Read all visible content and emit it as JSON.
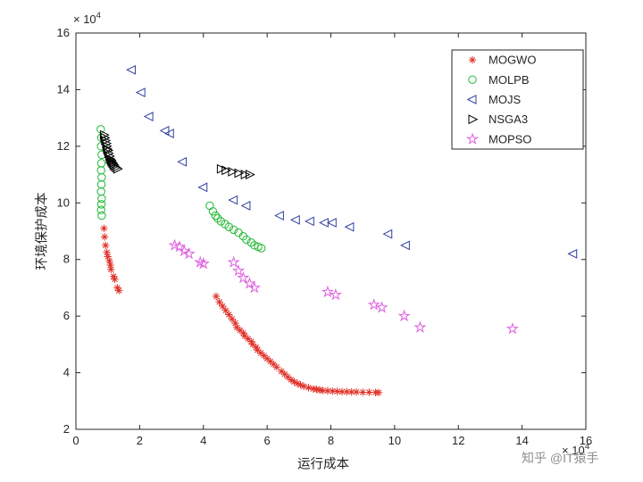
{
  "watermark": "知乎 @IT猿手",
  "chart_data": {
    "type": "scatter",
    "title": "",
    "xlabel": "运行成本",
    "ylabel": "环境保护成本",
    "exponent_label": "× 10^4",
    "xlim": [
      0,
      16
    ],
    "ylim": [
      2,
      16
    ],
    "xticks": [
      0,
      2,
      4,
      6,
      8,
      10,
      12,
      14,
      16
    ],
    "yticks": [
      2,
      4,
      6,
      8,
      10,
      12,
      14,
      16
    ],
    "grid": false,
    "legend_position": "top-right",
    "series": [
      {
        "name": "MOGWO",
        "marker": "asterisk",
        "color": "#e03028",
        "points": [
          [
            0.88,
            9.1
          ],
          [
            0.9,
            8.8
          ],
          [
            0.93,
            8.5
          ],
          [
            0.97,
            8.25
          ],
          [
            1.0,
            8.1
          ],
          [
            1.05,
            7.95
          ],
          [
            1.08,
            7.8
          ],
          [
            1.1,
            7.65
          ],
          [
            1.18,
            7.4
          ],
          [
            1.22,
            7.3
          ],
          [
            1.3,
            7.0
          ],
          [
            1.35,
            6.9
          ],
          [
            4.4,
            6.7
          ],
          [
            4.5,
            6.5
          ],
          [
            4.6,
            6.35
          ],
          [
            4.7,
            6.2
          ],
          [
            4.8,
            6.05
          ],
          [
            4.9,
            5.9
          ],
          [
            5.0,
            5.75
          ],
          [
            5.05,
            5.6
          ],
          [
            5.15,
            5.5
          ],
          [
            5.25,
            5.4
          ],
          [
            5.3,
            5.3
          ],
          [
            5.4,
            5.2
          ],
          [
            5.5,
            5.1
          ],
          [
            5.55,
            5.0
          ],
          [
            5.65,
            4.9
          ],
          [
            5.7,
            4.8
          ],
          [
            5.8,
            4.7
          ],
          [
            5.9,
            4.6
          ],
          [
            6.0,
            4.5
          ],
          [
            6.1,
            4.4
          ],
          [
            6.2,
            4.3
          ],
          [
            6.3,
            4.2
          ],
          [
            6.45,
            4.05
          ],
          [
            6.55,
            3.95
          ],
          [
            6.65,
            3.85
          ],
          [
            6.75,
            3.75
          ],
          [
            6.85,
            3.68
          ],
          [
            6.95,
            3.62
          ],
          [
            7.05,
            3.57
          ],
          [
            7.15,
            3.52
          ],
          [
            7.3,
            3.47
          ],
          [
            7.45,
            3.43
          ],
          [
            7.55,
            3.41
          ],
          [
            7.65,
            3.39
          ],
          [
            7.75,
            3.37
          ],
          [
            7.9,
            3.36
          ],
          [
            8.05,
            3.35
          ],
          [
            8.2,
            3.34
          ],
          [
            8.35,
            3.33
          ],
          [
            8.5,
            3.33
          ],
          [
            8.65,
            3.32
          ],
          [
            8.8,
            3.32
          ],
          [
            9.0,
            3.31
          ],
          [
            9.2,
            3.31
          ],
          [
            9.4,
            3.3
          ],
          [
            9.5,
            3.3
          ]
        ]
      },
      {
        "name": "MOLPB",
        "marker": "circle",
        "color": "#1db832",
        "points": [
          [
            0.78,
            12.6
          ],
          [
            0.8,
            12.3
          ],
          [
            0.79,
            12.0
          ],
          [
            0.81,
            11.7
          ],
          [
            0.8,
            11.4
          ],
          [
            0.79,
            11.15
          ],
          [
            0.81,
            10.9
          ],
          [
            0.8,
            10.65
          ],
          [
            0.79,
            10.4
          ],
          [
            0.81,
            10.15
          ],
          [
            0.8,
            9.95
          ],
          [
            0.79,
            9.75
          ],
          [
            0.81,
            9.55
          ],
          [
            4.2,
            9.9
          ],
          [
            4.3,
            9.7
          ],
          [
            4.38,
            9.55
          ],
          [
            4.45,
            9.45
          ],
          [
            4.55,
            9.35
          ],
          [
            4.68,
            9.25
          ],
          [
            4.8,
            9.15
          ],
          [
            4.95,
            9.05
          ],
          [
            5.1,
            8.95
          ],
          [
            5.25,
            8.82
          ],
          [
            5.35,
            8.7
          ],
          [
            5.5,
            8.6
          ],
          [
            5.6,
            8.5
          ],
          [
            5.72,
            8.45
          ],
          [
            5.82,
            8.4
          ]
        ]
      },
      {
        "name": "MOJS",
        "marker": "triangle-left",
        "color": "#3040a0",
        "points": [
          [
            1.75,
            14.7
          ],
          [
            2.05,
            13.9
          ],
          [
            2.3,
            13.05
          ],
          [
            2.8,
            12.55
          ],
          [
            2.95,
            12.45
          ],
          [
            3.35,
            11.45
          ],
          [
            4.0,
            10.55
          ],
          [
            4.95,
            10.1
          ],
          [
            5.35,
            9.9
          ],
          [
            6.4,
            9.55
          ],
          [
            6.9,
            9.4
          ],
          [
            7.35,
            9.35
          ],
          [
            7.8,
            9.3
          ],
          [
            8.05,
            9.3
          ],
          [
            8.6,
            9.15
          ],
          [
            9.8,
            8.9
          ],
          [
            10.35,
            8.5
          ],
          [
            15.6,
            8.2
          ]
        ]
      },
      {
        "name": "NSGA3",
        "marker": "triangle-right",
        "color": "#000000",
        "points": [
          [
            0.88,
            12.4
          ],
          [
            0.9,
            12.3
          ],
          [
            0.92,
            12.2
          ],
          [
            0.95,
            12.1
          ],
          [
            0.96,
            12.0
          ],
          [
            0.98,
            11.9
          ],
          [
            1.0,
            11.85
          ],
          [
            1.02,
            11.75
          ],
          [
            1.05,
            11.65
          ],
          [
            1.07,
            11.55
          ],
          [
            1.1,
            11.5
          ],
          [
            1.12,
            11.45
          ],
          [
            1.15,
            11.4
          ],
          [
            1.18,
            11.35
          ],
          [
            1.2,
            11.3
          ],
          [
            1.25,
            11.25
          ],
          [
            1.3,
            11.2
          ],
          [
            4.55,
            11.2
          ],
          [
            4.7,
            11.15
          ],
          [
            4.9,
            11.1
          ],
          [
            5.1,
            11.05
          ],
          [
            5.3,
            11.0
          ],
          [
            5.45,
            11.0
          ]
        ]
      },
      {
        "name": "MOPSO",
        "marker": "pentagram",
        "color": "#df5fdf",
        "points": [
          [
            3.1,
            8.5
          ],
          [
            3.25,
            8.45
          ],
          [
            3.4,
            8.3
          ],
          [
            3.55,
            8.2
          ],
          [
            3.9,
            7.9
          ],
          [
            4.0,
            7.85
          ],
          [
            4.95,
            7.9
          ],
          [
            5.1,
            7.6
          ],
          [
            5.25,
            7.35
          ],
          [
            5.45,
            7.15
          ],
          [
            5.6,
            7.0
          ],
          [
            7.9,
            6.85
          ],
          [
            8.15,
            6.75
          ],
          [
            9.35,
            6.4
          ],
          [
            9.6,
            6.3
          ],
          [
            10.3,
            6.0
          ],
          [
            10.8,
            5.6
          ],
          [
            13.7,
            5.55
          ]
        ]
      }
    ]
  }
}
